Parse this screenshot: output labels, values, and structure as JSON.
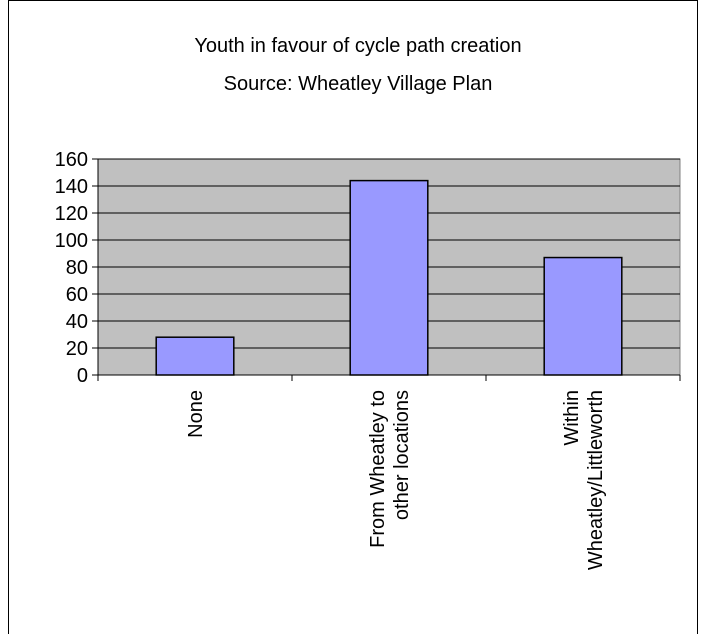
{
  "chart_data": {
    "type": "bar",
    "title": [
      "Youth in favour of cycle path creation",
      "Source: Wheatley Village Plan"
    ],
    "categories": [
      "None",
      "From Wheatley to other locations",
      "Within Wheatley/Littleworth"
    ],
    "values": [
      28,
      144,
      87
    ],
    "color": "#9999ff",
    "ylim": [
      0,
      160
    ],
    "yticks": [
      0,
      20,
      40,
      60,
      80,
      100,
      120,
      140,
      160
    ],
    "grid": true
  }
}
